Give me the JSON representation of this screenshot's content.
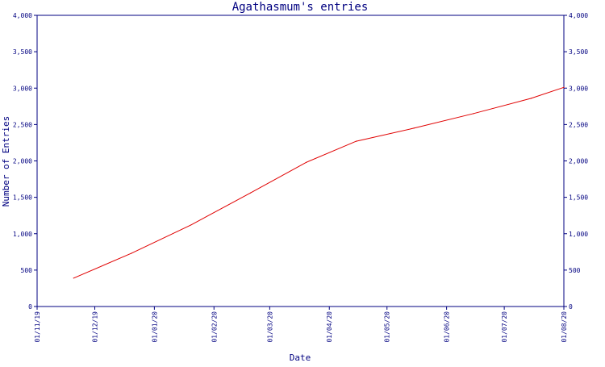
{
  "chart_data": {
    "type": "line",
    "title": "Agathasmum's entries",
    "xlabel": "Date",
    "ylabel": "Number of Entries",
    "ylim": [
      0,
      4000
    ],
    "y_ticks": [
      0,
      500,
      1000,
      1500,
      2000,
      2500,
      3000,
      3500,
      4000
    ],
    "y_tick_labels": [
      "0",
      "500",
      "1,000",
      "1,500",
      "2,000",
      "2,500",
      "3,000",
      "3,500",
      "4,000"
    ],
    "x_tick_labels": [
      "01/11/19",
      "01/12/19",
      "01/01/20",
      "01/02/20",
      "01/03/20",
      "01/04/20",
      "01/05/20",
      "01/06/20",
      "01/07/20",
      "01/08/20"
    ],
    "x_tick_dates": [
      "2019-11-01",
      "2019-12-01",
      "2020-01-01",
      "2020-02-01",
      "2020-03-01",
      "2020-04-01",
      "2020-05-01",
      "2020-06-01",
      "2020-07-01",
      "2020-08-01"
    ],
    "xlim": [
      "2019-11-01",
      "2020-08-01"
    ],
    "secondary_y_axis": true,
    "grid": false,
    "colors": {
      "axis": "#000080",
      "series": "#e00000",
      "background": "#ffffff"
    },
    "series": [
      {
        "x": [
          "2019-11-20",
          "2019-12-20",
          "2020-01-20",
          "2020-02-20",
          "2020-03-20",
          "2020-04-15",
          "2020-05-15",
          "2020-06-15",
          "2020-07-15",
          "2020-08-01"
        ],
        "values": [
          390,
          730,
          1120,
          1560,
          1980,
          2270,
          2450,
          2650,
          2860,
          3010
        ]
      }
    ]
  }
}
